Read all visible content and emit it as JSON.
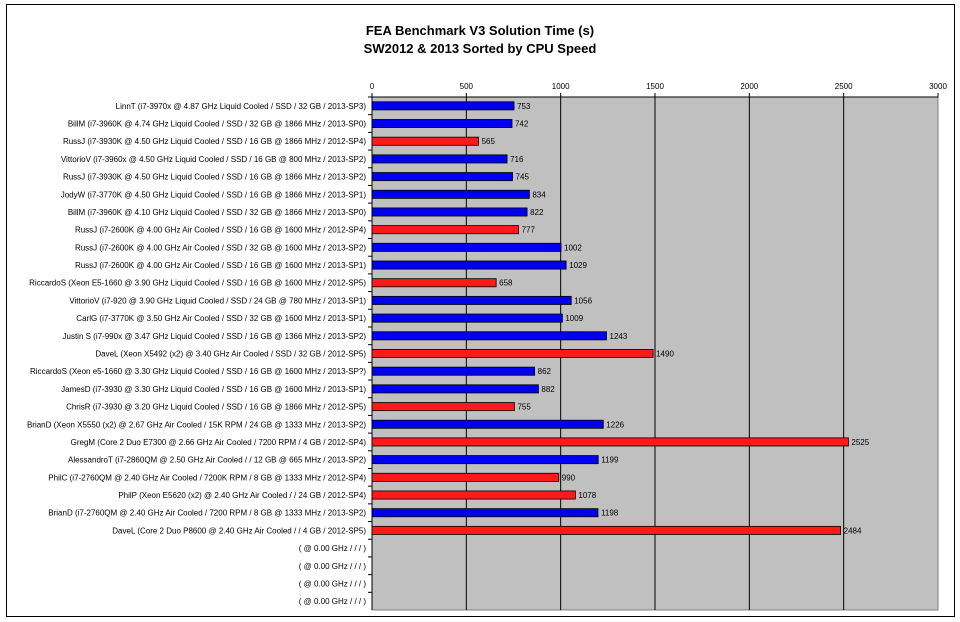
{
  "chart_data": {
    "type": "bar",
    "orientation": "horizontal",
    "title": "FEA Benchmark V3 Solution Time (s)",
    "subtitle": "SW2012 & 2013 Sorted by CPU Speed",
    "xlim": [
      0,
      3000
    ],
    "xticks": [
      "0",
      "500",
      "1000",
      "1500",
      "2000",
      "2500",
      "3000"
    ],
    "grid": "vertical lines",
    "series_colors": {
      "SW2013": "#0000ee",
      "SW2012": "#ff1a1a"
    },
    "bars": [
      {
        "label": "LinnT (i7-3970x @ 4.87 GHz Liquid Cooled / SSD / 32 GB / 2013-SP3)",
        "value": 753,
        "value_label": "753",
        "color": "#0000ee"
      },
      {
        "label": "BillM (i7-3960K @ 4.74 GHz Liquid Cooled / SSD / 32 GB @ 1866 MHz / 2013-SP0)",
        "value": 742,
        "value_label": "742",
        "color": "#0000ee"
      },
      {
        "label": "RussJ (i7-3930K @ 4.50 GHz Liquid Cooled / SSD / 16 GB @ 1866 MHz / 2012-SP4)",
        "value": 565,
        "value_label": "565",
        "color": "#ff1a1a"
      },
      {
        "label": "VittorioV (i7-3960x @ 4.50 GHz Liquid Cooled / SSD / 16 GB @ 800 MHz / 2013-SP2)",
        "value": 716,
        "value_label": "716",
        "color": "#0000ee"
      },
      {
        "label": "RussJ (i7-3930K @ 4.50 GHz Liquid Cooled / SSD / 16 GB @ 1866 MHz / 2013-SP2)",
        "value": 745,
        "value_label": "745",
        "color": "#0000ee"
      },
      {
        "label": "JodyW (i7-3770K @ 4.50 GHz Liquid Cooled / SSD / 16 GB @ 1866 MHz / 2013-SP1)",
        "value": 834,
        "value_label": "834",
        "color": "#0000ee"
      },
      {
        "label": "BillM (i7-3960K @ 4.10 GHz Liquid Cooled / SSD / 32 GB @ 1866 MHz / 2013-SP0)",
        "value": 822,
        "value_label": "822",
        "color": "#0000ee"
      },
      {
        "label": "RussJ (i7-2600K @ 4.00 GHz Air Cooled / SSD / 16 GB @ 1600 MHz / 2012-SP4)",
        "value": 777,
        "value_label": "777",
        "color": "#ff1a1a"
      },
      {
        "label": "RussJ (i7-2600K @ 4.00 GHz Air Cooled / SSD / 32 GB @ 1600 MHz / 2013-SP2)",
        "value": 1002,
        "value_label": "1002",
        "color": "#0000ee"
      },
      {
        "label": "RussJ (i7-2600K @ 4.00 GHz Air Cooled / SSD / 16 GB @ 1600 MHz / 2013-SP1)",
        "value": 1029,
        "value_label": "1029",
        "color": "#0000ee"
      },
      {
        "label": "RiccardoS (Xeon E5-1660 @ 3.90 GHz Liquid Cooled / SSD / 16 GB @ 1600 MHz / 2012-SP5)",
        "value": 658,
        "value_label": "658",
        "color": "#ff1a1a"
      },
      {
        "label": "VittorioV (i7-920 @ 3.90 GHz Liquid Cooled / SSD / 24 GB @ 780 MHz / 2013-SP1)",
        "value": 1056,
        "value_label": "1056",
        "color": "#0000ee"
      },
      {
        "label": "CarlG (i7-3770K @ 3.50 GHz Air Cooled / SSD / 32 GB @ 1600 MHz / 2013-SP1)",
        "value": 1009,
        "value_label": "1009",
        "color": "#0000ee"
      },
      {
        "label": "Justin S (i7-990x @ 3.47 GHz Liquid Cooled / SSD / 16 GB @ 1366 MHz / 2013-SP2)",
        "value": 1243,
        "value_label": "1243",
        "color": "#0000ee"
      },
      {
        "label": "DaveL (Xeon X5492 (x2) @ 3.40 GHz Air Cooled / SSD / 32 GB / 2012-SP5)",
        "value": 1490,
        "value_label": "1490",
        "color": "#ff1a1a"
      },
      {
        "label": "RiccardoS (Xeon e5-1660 @ 3.30 GHz Liquid Cooled / SSD / 16 GB @ 1600 MHz / 2013-SP?)",
        "value": 862,
        "value_label": "862",
        "color": "#0000ee"
      },
      {
        "label": "JamesD (i7-3930 @ 3.30 GHz Liquid Cooled / SSD / 16 GB @ 1600 MHz / 2013-SP1)",
        "value": 882,
        "value_label": "882",
        "color": "#0000ee"
      },
      {
        "label": "ChrisR (i7-3930 @ 3.20 GHz Liquid Cooled / SSD / 16 GB @ 1866 MHz / 2012-SP5)",
        "value": 755,
        "value_label": "755",
        "color": "#ff1a1a"
      },
      {
        "label": "BrianD (Xeon X5550 (x2) @ 2.67 GHz Air Cooled / 15K RPM / 24 GB @ 1333 MHz / 2013-SP2)",
        "value": 1226,
        "value_label": "1226",
        "color": "#0000ee"
      },
      {
        "label": "GregM (Core 2 Duo E7300 @ 2.66 GHz Air Cooled / 7200 RPM / 4 GB / 2012-SP4)",
        "value": 2525,
        "value_label": "2525",
        "color": "#ff1a1a"
      },
      {
        "label": "AlessandroT (i7-2860QM @ 2.50 GHz Air Cooled /  / 12 GB @ 665 MHz / 2013-SP2)",
        "value": 1199,
        "value_label": "1199",
        "color": "#0000ee"
      },
      {
        "label": "PhilC (i7-2760QM @ 2.40 GHz Air Cooled / 7200K RPM / 8 GB @ 1333 MHz / 2012-SP4)",
        "value": 990,
        "value_label": "990",
        "color": "#ff1a1a"
      },
      {
        "label": "PhilP (Xeon E5620 (x2) @ 2.40 GHz Air Cooled /  / 24 GB / 2012-SP4)",
        "value": 1078,
        "value_label": "1078",
        "color": "#ff1a1a"
      },
      {
        "label": "BrianD (i7-2760QM @ 2.40 GHz Air Cooled / 7200 RPM / 8 GB @ 1333 MHz / 2013-SP2)",
        "value": 1198,
        "value_label": "1198",
        "color": "#0000ee"
      },
      {
        "label": "DaveL (Core 2 Duo P8600 @ 2.40 GHz Air Cooled /  / 4 GB / 2012-SP5)",
        "value": 2484,
        "value_label": "2484",
        "color": "#ff1a1a"
      },
      {
        "label": "( @ 0.00 GHz  /  /  / )",
        "value": null,
        "value_label": null,
        "color": null
      },
      {
        "label": "( @ 0.00 GHz  /  /  / )",
        "value": null,
        "value_label": null,
        "color": null
      },
      {
        "label": "( @ 0.00 GHz  /  /  / )",
        "value": null,
        "value_label": null,
        "color": null
      },
      {
        "label": "( @ 0.00 GHz  /  /  / )",
        "value": null,
        "value_label": null,
        "color": null
      }
    ]
  }
}
